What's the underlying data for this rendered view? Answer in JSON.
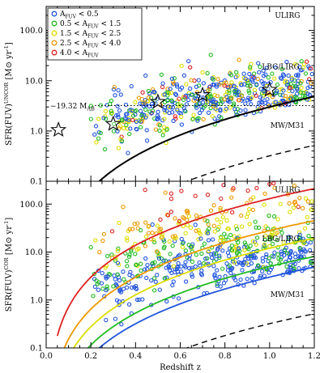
{
  "chart_data": [
    {
      "type": "scatter",
      "panel": "top",
      "ylabel": "SFR(FUV)",
      "ylabel_sup": "UNCOR",
      "ylabel_unit": "[M⊙ yr",
      "ylabel_unit_sup": "-1",
      "ylabel_unit_end": "]",
      "xlim": [
        0,
        1.2
      ],
      "ylim": [
        0.1,
        300
      ],
      "yscale": "log",
      "yticks": [
        {
          "v": 0.1,
          "label": "0.1"
        },
        {
          "v": 1,
          "label": "1.0"
        },
        {
          "v": 10,
          "label": "10.0"
        },
        {
          "v": 100,
          "label": "100.0"
        }
      ],
      "annotations": [
        {
          "text": "ULIRG",
          "x": 1.08,
          "y": 200
        },
        {
          "text": "LBG/LIRG",
          "x": 1.05,
          "y": 19
        },
        {
          "text": "MW/M31",
          "x": 1.08,
          "y": 1.3
        }
      ],
      "mag_limit": {
        "value": 3.2,
        "label": "−19.32 M",
        "label_sub": "AB"
      },
      "stars": [
        {
          "x": 0.055,
          "y": 1.05
        },
        {
          "x": 0.3,
          "y": 1.38
        },
        {
          "x": 0.5,
          "y": 3.8
        },
        {
          "x": 0.7,
          "y": 5.2
        },
        {
          "x": 1.0,
          "y": 6.6
        }
      ],
      "legend": {
        "placement": "top-left",
        "entries": [
          {
            "lo": "",
            "hi": "0.5",
            "prefix": "A",
            "sub": "FUV",
            "op1": "",
            "op2": " < ",
            "color": "#2255dd"
          },
          {
            "lo": "0.5",
            "hi": "1.5",
            "prefix": "A",
            "sub": "FUV",
            "op1": " < ",
            "op2": " < ",
            "color": "#22bb22"
          },
          {
            "lo": "1.5",
            "hi": "2.5",
            "prefix": "A",
            "sub": "FUV",
            "op1": " < ",
            "op2": " < ",
            "color": "#dddd00"
          },
          {
            "lo": "2.5",
            "hi": "4.0",
            "prefix": "A",
            "sub": "FUV",
            "op1": " < ",
            "op2": " < ",
            "color": "#ee9900"
          },
          {
            "lo": "4.0",
            "hi": "",
            "prefix": "A",
            "sub": "FUV",
            "op1": " < ",
            "op2": "",
            "color": "#dd2222"
          }
        ]
      }
    },
    {
      "type": "scatter",
      "panel": "bottom",
      "xlabel": "Redshift z",
      "ylabel": "SFR(FUV)",
      "ylabel_sup": "COR",
      "ylabel_unit": "[M⊙ yr",
      "ylabel_unit_sup": "-1",
      "ylabel_unit_end": "]",
      "xlim": [
        0,
        1.2
      ],
      "ylim": [
        0.1,
        300
      ],
      "yscale": "log",
      "xticks": [
        {
          "v": 0.0,
          "label": "0.0"
        },
        {
          "v": 0.2,
          "label": "0.2"
        },
        {
          "v": 0.4,
          "label": "0.4"
        },
        {
          "v": 0.6,
          "label": "0.6"
        },
        {
          "v": 0.8,
          "label": "0.8"
        },
        {
          "v": 1.0,
          "label": "1.0"
        },
        {
          "v": 1.2,
          "label": "1.2"
        }
      ],
      "yticks": [
        {
          "v": 0.1,
          "label": "0.1"
        },
        {
          "v": 1,
          "label": "1.0"
        },
        {
          "v": 10,
          "label": "10.0"
        },
        {
          "v": 100,
          "label": "100.0"
        }
      ],
      "annotations": [
        {
          "text": "ULIRG",
          "x": 1.08,
          "y": 200
        },
        {
          "text": "LBG/LIRG",
          "x": 1.05,
          "y": 19
        },
        {
          "text": "MW/M31",
          "x": 1.08,
          "y": 1.3
        }
      ],
      "curves": [
        {
          "color": "#dd2222",
          "norm": 130
        },
        {
          "color": "#ee9900",
          "norm": 28
        },
        {
          "color": "#dddd00",
          "norm": 12
        },
        {
          "color": "#22bb22",
          "norm": 5
        },
        {
          "color": "#2255dd",
          "norm": 3
        }
      ]
    }
  ]
}
